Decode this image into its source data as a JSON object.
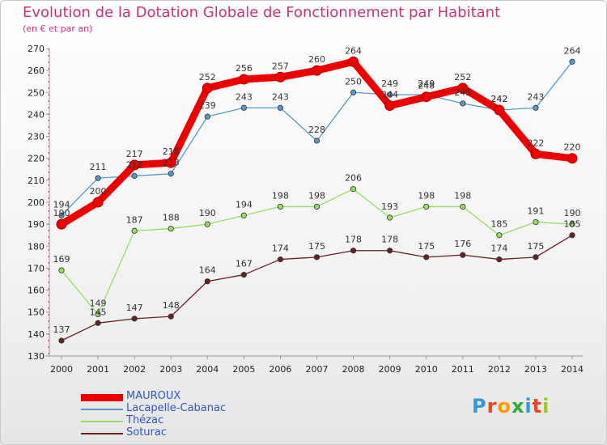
{
  "title": "Evolution de la Dotation Globale de Fonctionnement par Habitant",
  "subtitle": "(en € et par an)",
  "logo_text": "Proxiti",
  "chart_data": {
    "type": "line",
    "title": "Evolution de la Dotation Globale de Fonctionnement par Habitant",
    "subtitle": "(en € et par an)",
    "x": [
      2000,
      2001,
      2002,
      2003,
      2004,
      2005,
      2006,
      2007,
      2008,
      2009,
      2010,
      2011,
      2012,
      2013,
      2014
    ],
    "ylim": [
      130,
      270
    ],
    "yticks": [
      130,
      140,
      150,
      160,
      170,
      180,
      190,
      200,
      210,
      220,
      230,
      240,
      250,
      260,
      270
    ],
    "grid": false,
    "legend_placement": "bottom-left",
    "series": [
      {
        "name": "MAUROUX",
        "color": "#ee0000",
        "values": [
          190,
          200,
          217,
          218,
          252,
          256,
          257,
          260,
          264,
          244,
          248,
          252,
          242,
          222,
          220
        ],
        "labels": [
          "190",
          "200",
          "217",
          "218",
          "252",
          "256",
          "257",
          "260",
          "264",
          "244",
          "248",
          "252",
          "242",
          "222",
          "220"
        ]
      },
      {
        "name": "Lacapelle-Cabanac",
        "color": "#5599cc",
        "values": [
          194,
          211,
          212,
          213,
          239,
          243,
          243,
          228,
          250,
          249,
          249,
          245,
          242,
          243,
          264
        ],
        "labels": [
          "194",
          "211",
          "212",
          "213",
          "239",
          "243",
          "243",
          "228",
          "250",
          "249",
          "249",
          "245",
          "242",
          "243",
          "264"
        ]
      },
      {
        "name": "Thézac",
        "color": "#99dd66",
        "values": [
          169,
          149,
          187,
          188,
          190,
          194,
          198,
          198,
          206,
          193,
          198,
          198,
          185,
          191,
          190
        ],
        "labels": [
          "169",
          "149",
          "187",
          "188",
          "190",
          "194",
          "198",
          "198",
          "206",
          "193",
          "198",
          "198",
          "185",
          "191",
          "190"
        ]
      },
      {
        "name": "Soturac",
        "color": "#662222",
        "values": [
          137,
          145,
          147,
          148,
          164,
          167,
          174,
          175,
          178,
          178,
          175,
          176,
          174,
          175,
          185
        ],
        "labels": [
          "137",
          "145",
          "147",
          "148",
          "164",
          "167",
          "174",
          "175",
          "178",
          "178",
          "175",
          "176",
          "174",
          "175",
          "185"
        ]
      }
    ]
  }
}
